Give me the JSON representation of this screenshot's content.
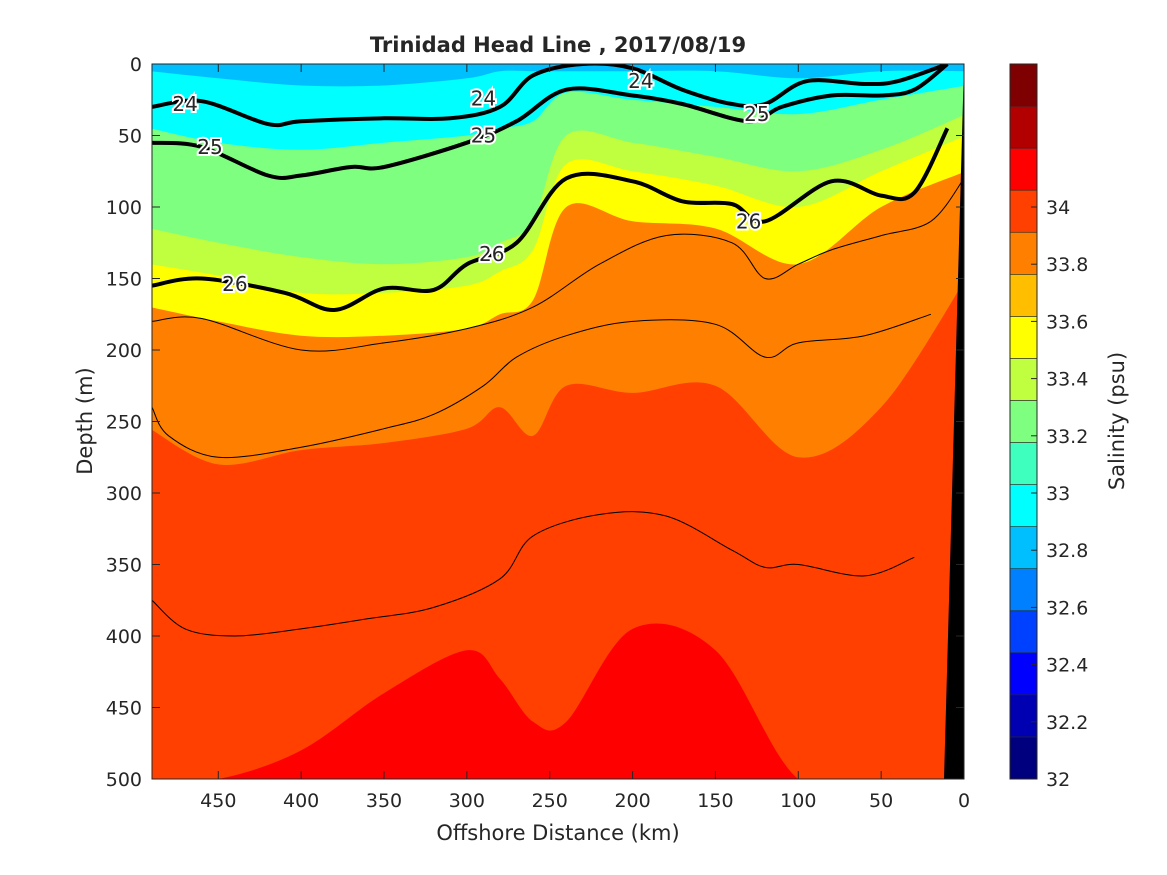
{
  "chart_data": {
    "type": "heatmap",
    "title": "Trinidad Head Line , 2017/08/19",
    "xlabel": "Offshore Distance (km)",
    "ylabel": "Depth (m)",
    "colorbar_label": "Salinity (psu)",
    "x_reversed": true,
    "y_reversed": true,
    "xlim": [
      0,
      490
    ],
    "ylim": [
      0,
      500
    ],
    "xticks": [
      "450",
      "400",
      "350",
      "300",
      "250",
      "200",
      "150",
      "100",
      "50",
      "0"
    ],
    "xtick_values": [
      450,
      400,
      350,
      300,
      250,
      200,
      150,
      100,
      50,
      0
    ],
    "yticks": [
      "0",
      "50",
      "100",
      "150",
      "200",
      "250",
      "300",
      "350",
      "400",
      "450",
      "500"
    ],
    "ytick_values": [
      0,
      50,
      100,
      150,
      200,
      250,
      300,
      350,
      400,
      450,
      500
    ],
    "color_range": [
      32,
      34.5
    ],
    "colorbar_ticks": [
      "32",
      "32.2",
      "32.4",
      "32.6",
      "32.8",
      "33",
      "33.2",
      "33.4",
      "33.6",
      "33.8",
      "34"
    ],
    "colorbar_tick_values": [
      32,
      32.2,
      32.4,
      32.6,
      32.8,
      33,
      33.2,
      33.4,
      33.6,
      33.8,
      34
    ],
    "colormap": [
      "#00007f",
      "#0000b2",
      "#0000ff",
      "#0040ff",
      "#0080ff",
      "#00bfff",
      "#00ffff",
      "#3fffbf",
      "#7fff7f",
      "#bfff3f",
      "#ffff00",
      "#ffbf00",
      "#ff8000",
      "#ff4000",
      "#ff0000",
      "#b20000",
      "#7f0000"
    ],
    "seafloor_color": "#000000",
    "salinity_bands": [
      {
        "level": 33.0,
        "depth": [
          5,
          10,
          15,
          15,
          10,
          5,
          5,
          5,
          5,
          5,
          10,
          5,
          5
        ]
      },
      {
        "level": 33.2,
        "depth": [
          45,
          55,
          60,
          55,
          50,
          45,
          40,
          20,
          25,
          30,
          35,
          25,
          15
        ]
      },
      {
        "level": 33.4,
        "depth": [
          115,
          125,
          135,
          140,
          135,
          125,
          110,
          50,
          55,
          65,
          75,
          60,
          35
        ]
      },
      {
        "level": 33.6,
        "depth": [
          140,
          148,
          160,
          160,
          155,
          145,
          130,
          70,
          75,
          85,
          100,
          75,
          50
        ]
      },
      {
        "level": 33.8,
        "depth": [
          170,
          180,
          190,
          190,
          185,
          175,
          165,
          100,
          110,
          115,
          140,
          100,
          75
        ]
      },
      {
        "level": 34.0,
        "depth": [
          255,
          280,
          270,
          265,
          255,
          240,
          260,
          225,
          230,
          225,
          275,
          240,
          150
        ]
      },
      {
        "level": 34.2,
        "depth": [
          500,
          500,
          480,
          440,
          410,
          430,
          460,
          460,
          395,
          410,
          500,
          500,
          500
        ]
      }
    ],
    "band_x": [
      490,
      450,
      400,
      350,
      300,
      280,
      260,
      240,
      200,
      150,
      100,
      50,
      10
    ],
    "density_contours": [
      {
        "label": "24",
        "x": [
          490,
          460,
          420,
          400,
          350,
          310,
          280,
          260,
          230,
          200,
          170,
          140,
          120,
          95,
          60,
          40,
          10
        ],
        "y": [
          30,
          26,
          42,
          40,
          38,
          38,
          30,
          8,
          0,
          3,
          18,
          28,
          28,
          12,
          14,
          12,
          0
        ]
      },
      {
        "label": "25",
        "x": [
          490,
          460,
          420,
          400,
          370,
          350,
          300,
          270,
          240,
          200,
          170,
          130,
          110,
          80,
          50,
          30,
          10
        ],
        "y": [
          55,
          58,
          78,
          78,
          72,
          72,
          55,
          40,
          18,
          22,
          28,
          40,
          30,
          22,
          22,
          18,
          0
        ]
      },
      {
        "label": "26",
        "x": [
          490,
          460,
          410,
          380,
          350,
          320,
          300,
          270,
          240,
          200,
          170,
          140,
          120,
          80,
          50,
          30,
          10
        ],
        "y": [
          155,
          150,
          160,
          172,
          157,
          158,
          140,
          125,
          80,
          82,
          96,
          98,
          110,
          82,
          92,
          90,
          45
        ]
      }
    ],
    "contour_labels": [
      {
        "text": "24",
        "x": 470,
        "y": 28
      },
      {
        "text": "24",
        "x": 290,
        "y": 24
      },
      {
        "text": "24",
        "x": 195,
        "y": 12
      },
      {
        "text": "25",
        "x": 455,
        "y": 58
      },
      {
        "text": "25",
        "x": 290,
        "y": 50
      },
      {
        "text": "25",
        "x": 125,
        "y": 35
      },
      {
        "text": "26",
        "x": 440,
        "y": 154
      },
      {
        "text": "26",
        "x": 285,
        "y": 133
      },
      {
        "text": "26",
        "x": 130,
        "y": 110
      }
    ],
    "thin_isolines": [
      {
        "x": [
          490,
          460,
          400,
          350,
          300,
          260,
          220,
          180,
          140,
          120,
          100,
          80,
          50,
          20,
          0
        ],
        "y": [
          180,
          178,
          200,
          195,
          185,
          170,
          140,
          120,
          125,
          150,
          140,
          130,
          120,
          110,
          80
        ]
      },
      {
        "x": [
          490,
          480,
          450,
          400,
          350,
          320,
          290,
          270,
          240,
          200,
          150,
          120,
          100,
          60,
          20
        ],
        "y": [
          240,
          260,
          275,
          268,
          255,
          245,
          225,
          205,
          190,
          180,
          182,
          205,
          195,
          190,
          175
        ]
      },
      {
        "x": [
          490,
          470,
          440,
          400,
          360,
          320,
          280,
          260,
          220,
          180,
          140,
          120,
          100,
          60,
          30
        ],
        "y": [
          375,
          395,
          400,
          395,
          388,
          380,
          360,
          330,
          315,
          316,
          340,
          352,
          350,
          358,
          345
        ]
      }
    ]
  }
}
